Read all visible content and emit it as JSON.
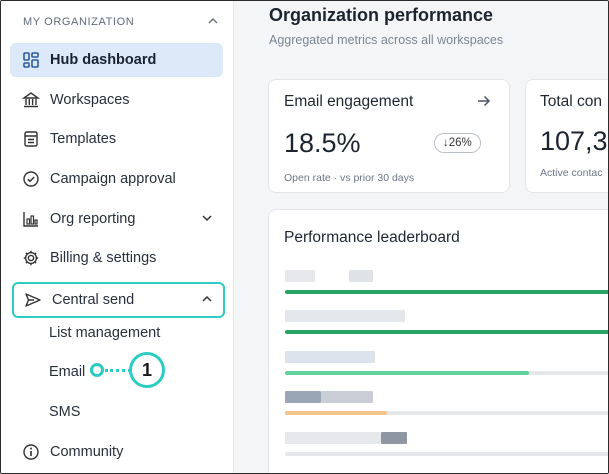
{
  "sidebar": {
    "section_label": "MY ORGANIZATION",
    "items": [
      {
        "label": "Hub dashboard",
        "icon": "hub-dashboard-icon"
      },
      {
        "label": "Workspaces",
        "icon": "bank-building-icon"
      },
      {
        "label": "Templates",
        "icon": "templates-icon"
      },
      {
        "label": "Campaign approval",
        "icon": "check-circle-icon"
      },
      {
        "label": "Org reporting",
        "icon": "bar-chart-icon"
      },
      {
        "label": "Billing & settings",
        "icon": "gear-icon"
      },
      {
        "label": "Central send",
        "icon": "paper-plane-icon"
      }
    ],
    "sub_items": [
      "List management",
      "Email",
      "SMS"
    ],
    "bottom_item": {
      "label": "Community",
      "icon": "info-icon"
    }
  },
  "callout": {
    "number": "1",
    "color": "#2ccbc3"
  },
  "main": {
    "title": "Organization performance",
    "subtitle": "Aggregated metrics across all workspaces",
    "cards": [
      {
        "title": "Email engagement",
        "value": "18.5%",
        "delta": "↓26%",
        "footnote": "Open rate · vs prior 30 days"
      },
      {
        "title": "Total con",
        "value": "107,31",
        "footnote": "Active contac"
      }
    ],
    "leaderboard": {
      "title": "Performance leaderboard",
      "bars": [
        {
          "fill": 1.0,
          "color": "#27a364"
        },
        {
          "fill": 1.0,
          "color": "#27a364"
        },
        {
          "fill": 0.74,
          "color": "#5fd39a"
        },
        {
          "fill": 0.31,
          "color": "#f6c48a"
        },
        {
          "fill": 0.0,
          "color": "#e5e7eb"
        }
      ]
    }
  },
  "colors": {
    "accent": "#2ccbc3",
    "active_bg": "#dbe9f9",
    "green": "#27a364"
  }
}
